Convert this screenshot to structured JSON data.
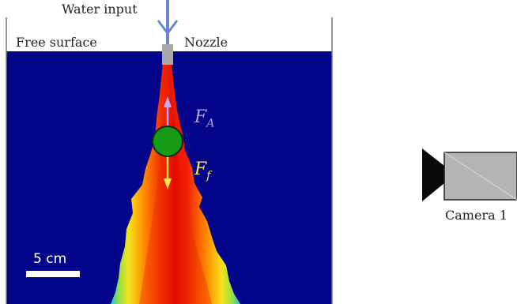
{
  "labels": {
    "water_input": "Water input",
    "free_surface": "Free surface",
    "nozzle": "Nozzle",
    "camera": "Camera 1",
    "scale_bar": "5 cm"
  },
  "forces": {
    "added_mass": {
      "symbol": "F",
      "subscript": "A",
      "color": "#b69ee0"
    },
    "fluid": {
      "symbol": "F",
      "subscript": "f",
      "color": "#ffe44a"
    }
  },
  "colors": {
    "water": "#03058a",
    "plume_core": "#f01a05",
    "plume_mid": "#ff8a00",
    "plume_edge": "#f5e21c",
    "particle": "#169b16",
    "inlet_pipe": "#6a86d0",
    "nozzle": "#a9a9a9",
    "camera_body": "#b4b4b4",
    "camera_lens": "#0a0a0a"
  },
  "icons": [
    "water-input-arrow-icon",
    "camera-icon"
  ]
}
